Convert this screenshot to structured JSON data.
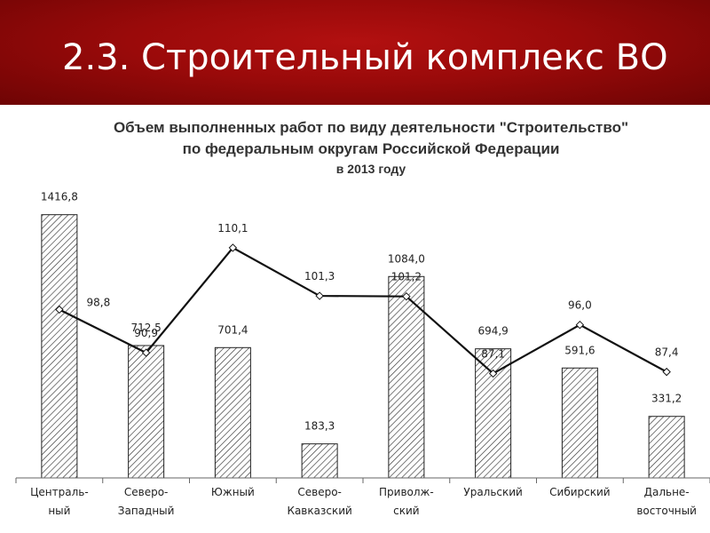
{
  "slide": {
    "title": "2.3. Строительный комплекс ВО"
  },
  "chart_data": {
    "type": "bar",
    "title": "Объем выполненных работ по виду деятельности \"Строительство\"",
    "subtitle": "по федеральным округам Российской Федерации",
    "subtitle2": "в 2013 году",
    "categories": [
      [
        "Централь-",
        "ный"
      ],
      [
        "Северо-",
        "Западный"
      ],
      [
        "Южный"
      ],
      [
        "Северо-",
        "Кавказский"
      ],
      [
        "Приволж-",
        "ский"
      ],
      [
        "Уральский"
      ],
      [
        "Сибирский"
      ],
      [
        "Дальне-",
        "восточный"
      ]
    ],
    "series": [
      {
        "type": "bar",
        "values": [
          1416.8,
          712.5,
          701.4,
          183.3,
          1084.0,
          694.9,
          591.6,
          331.2
        ],
        "labels": [
          "1416,8",
          "712,5",
          "701,4",
          "183,3",
          "1084,0",
          "694,9",
          "591,6",
          "331,2"
        ]
      },
      {
        "type": "line",
        "values": [
          98.8,
          90.9,
          110.1,
          101.3,
          101.2,
          87.1,
          96.0,
          87.4
        ],
        "labels": [
          "98,8",
          "90,9",
          "110,1",
          "101,3",
          "101,2",
          "87,1",
          "96,0",
          "87,4"
        ]
      }
    ],
    "bar_axis_range": [
      0,
      1530
    ],
    "line_axis_range": [
      68,
      120
    ],
    "grid": false,
    "legend": "none",
    "colors": {
      "bar_fill": "#ffffff",
      "hatch": "#333333",
      "line": "#111111",
      "banner": "#9a0a0a"
    }
  }
}
